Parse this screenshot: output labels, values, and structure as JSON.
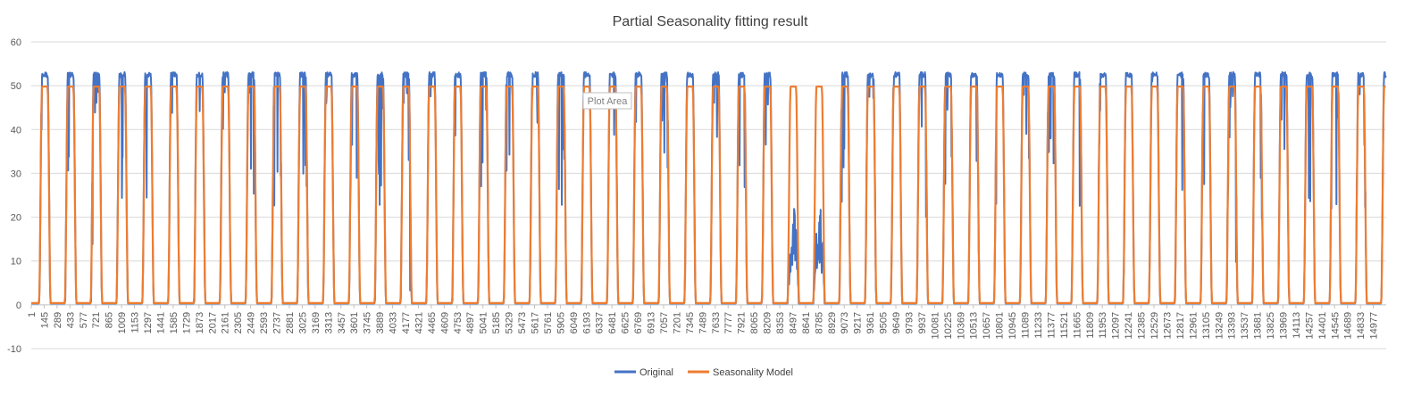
{
  "chart_data": {
    "type": "line",
    "title": "Partial Seasonality fitting result",
    "xlabel": "",
    "ylabel": "",
    "ylim": [
      -10,
      60
    ],
    "yticks": [
      -10,
      0,
      10,
      20,
      30,
      40,
      50,
      60
    ],
    "x_range": [
      1,
      15120
    ],
    "x_tick_labels": [
      "1",
      "145",
      "289",
      "433",
      "577",
      "721",
      "865",
      "1009",
      "1153",
      "1297",
      "1441",
      "1585",
      "1729",
      "1873",
      "2017",
      "2161",
      "2305",
      "2449",
      "2593",
      "2737",
      "2881",
      "3025",
      "3169",
      "3313",
      "3457",
      "3601",
      "3745",
      "3889",
      "4033",
      "4177",
      "4321",
      "4465",
      "4609",
      "4753",
      "4897",
      "5041",
      "5185",
      "5329",
      "5473",
      "5617",
      "5761",
      "5905",
      "6049",
      "6193",
      "6337",
      "6481",
      "6625",
      "6769",
      "6913",
      "7057",
      "7201",
      "7345",
      "7489",
      "7633",
      "7777",
      "7921",
      "8065",
      "8209",
      "8353",
      "8497",
      "8641",
      "8785",
      "8929",
      "9073",
      "9217",
      "9361",
      "9505",
      "9649",
      "9793",
      "9937",
      "10081",
      "10225",
      "10369",
      "10513",
      "10657",
      "10801",
      "10945",
      "11089",
      "11233",
      "11377",
      "11521",
      "11665",
      "11809",
      "11953",
      "12097",
      "12241",
      "12385",
      "12529",
      "12673",
      "12817",
      "12961",
      "13105",
      "13249",
      "13393",
      "13537",
      "13681",
      "13825",
      "13969",
      "14113",
      "14257",
      "14401",
      "14545",
      "14689",
      "14833",
      "14977"
    ],
    "period": 288,
    "grid": "horizontal",
    "legend_position": "bottom",
    "series": [
      {
        "name": "Original",
        "color": "#4472C4",
        "description_values": {
          "peak_level": 52.5,
          "trough_level": 0.3,
          "anomaly_cycles_low_peak_start_index": [
            29,
            30
          ]
        }
      },
      {
        "name": "Seasonality Model",
        "color": "#ED7D31",
        "description_values": {
          "peak_level": 49.8,
          "trough_level": 0.4
        }
      }
    ],
    "annotations": [
      {
        "text": "Plot Area"
      }
    ]
  }
}
